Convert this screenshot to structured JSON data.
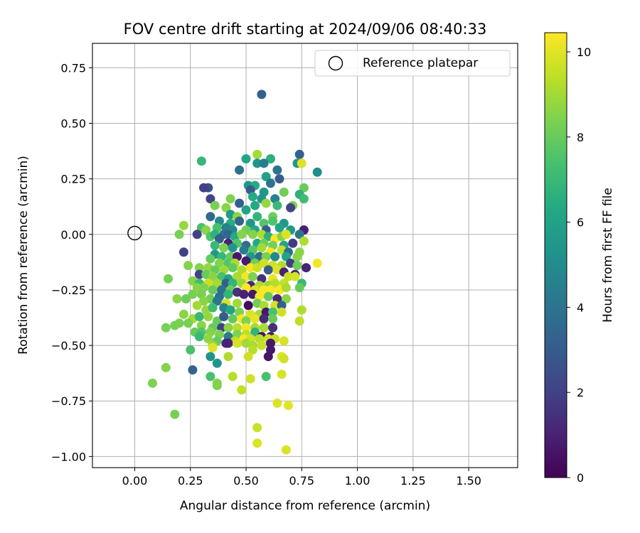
{
  "chart_data": {
    "type": "scatter",
    "title": "FOV centre drift starting at 2024/09/06 08:40:33",
    "xlabel": "Angular distance from reference (arcmin)",
    "ylabel": "Rotation from reference (arcmin)",
    "xlim": [
      -0.19,
      1.72
    ],
    "ylim": [
      -1.05,
      0.86
    ],
    "xticks": [
      0.0,
      0.25,
      0.5,
      0.75,
      1.0,
      1.25,
      1.5
    ],
    "xtick_labels": [
      "0.00",
      "0.25",
      "0.50",
      "0.75",
      "1.00",
      "1.25",
      "1.50"
    ],
    "yticks": [
      0.75,
      0.5,
      0.25,
      0.0,
      -0.25,
      -0.5,
      -0.75,
      -1.0
    ],
    "ytick_labels": [
      "0.75",
      "0.50",
      "0.25",
      "0.00",
      "−0.25",
      "−0.50",
      "−0.75",
      "−1.00"
    ],
    "grid": true,
    "legend": {
      "placement": "top-right",
      "entries": [
        "Reference platepar"
      ]
    },
    "reference_point": {
      "name": "Reference platepar",
      "x": 0.0,
      "y": 0.0
    },
    "colorbar": {
      "label": "Hours from first FF file",
      "min": 0,
      "max": 10.45,
      "colormap": "viridis",
      "ticks": [
        0,
        2,
        4,
        6,
        8,
        10
      ],
      "tick_labels": [
        "0",
        "2",
        "4",
        "6",
        "8",
        "10"
      ]
    },
    "points": [
      [
        0.57,
        0.63,
        3.3
      ],
      [
        0.74,
        0.36,
        3.2
      ],
      [
        0.64,
        0.29,
        4.0
      ],
      [
        0.61,
        0.34,
        6.6
      ],
      [
        0.55,
        0.36,
        9.0
      ],
      [
        0.5,
        0.34,
        6.2
      ],
      [
        0.55,
        0.32,
        5.4
      ],
      [
        0.58,
        0.32,
        4.4
      ],
      [
        0.73,
        0.32,
        5.4
      ],
      [
        0.75,
        0.32,
        9.9
      ],
      [
        0.3,
        0.33,
        6.9
      ],
      [
        0.82,
        0.28,
        5.0
      ],
      [
        0.47,
        0.29,
        3.8
      ],
      [
        0.59,
        0.26,
        6.0
      ],
      [
        0.65,
        0.25,
        3.0
      ],
      [
        0.61,
        0.23,
        4.0
      ],
      [
        0.51,
        0.22,
        5.6
      ],
      [
        0.33,
        0.21,
        2.5
      ],
      [
        0.31,
        0.21,
        2.0
      ],
      [
        0.54,
        0.22,
        6.4
      ],
      [
        0.76,
        0.21,
        8.0
      ],
      [
        0.52,
        0.2,
        3.0
      ],
      [
        0.58,
        0.19,
        5.6
      ],
      [
        0.67,
        0.19,
        8.2
      ],
      [
        0.74,
        0.18,
        6.7
      ],
      [
        0.53,
        0.17,
        6.4
      ],
      [
        0.57,
        0.16,
        5.4
      ],
      [
        0.63,
        0.16,
        4.6
      ],
      [
        0.76,
        0.16,
        7.2
      ],
      [
        0.34,
        0.16,
        2.1
      ],
      [
        0.43,
        0.16,
        8.4
      ],
      [
        0.41,
        0.12,
        8.6
      ],
      [
        0.47,
        0.14,
        3.1
      ],
      [
        0.54,
        0.13,
        6.3
      ],
      [
        0.59,
        0.14,
        8.8
      ],
      [
        0.64,
        0.13,
        7.0
      ],
      [
        0.71,
        0.13,
        8.5
      ],
      [
        0.7,
        0.12,
        2.1
      ],
      [
        0.36,
        0.13,
        8.3
      ],
      [
        0.5,
        0.11,
        6.0
      ],
      [
        0.43,
        0.09,
        5.6
      ],
      [
        0.55,
        0.08,
        6.8
      ],
      [
        0.62,
        0.08,
        8.2
      ],
      [
        0.34,
        0.08,
        3.6
      ],
      [
        0.38,
        0.06,
        5.0
      ],
      [
        0.43,
        0.05,
        6.5
      ],
      [
        0.46,
        0.08,
        8.6
      ],
      [
        0.47,
        0.06,
        3.4
      ],
      [
        0.52,
        0.05,
        5.5
      ],
      [
        0.58,
        0.05,
        7.6
      ],
      [
        0.62,
        0.06,
        7.5
      ],
      [
        0.67,
        0.05,
        5.6
      ],
      [
        0.37,
        0.03,
        7.4
      ],
      [
        0.41,
        0.03,
        4.5
      ],
      [
        0.44,
        0.02,
        4.8
      ],
      [
        0.5,
        0.02,
        8.2
      ],
      [
        0.54,
        0.02,
        6.3
      ],
      [
        0.59,
        0.02,
        3.0
      ],
      [
        0.65,
        0.03,
        6.0
      ],
      [
        0.7,
        0.02,
        5.6
      ],
      [
        0.76,
        0.02,
        0.9
      ],
      [
        0.3,
        0.03,
        7.4
      ],
      [
        0.32,
        0.02,
        8.6
      ],
      [
        0.28,
        0.0,
        2.0
      ],
      [
        0.34,
        -0.01,
        7.6
      ],
      [
        0.36,
        0.0,
        6.7
      ],
      [
        0.4,
        0.0,
        4.0
      ],
      [
        0.42,
        0.0,
        3.4
      ],
      [
        0.45,
        -0.01,
        6.3
      ],
      [
        0.48,
        0.0,
        8.5
      ],
      [
        0.53,
        0.0,
        8.5
      ],
      [
        0.57,
        0.0,
        9.2
      ],
      [
        0.6,
        -0.01,
        6.6
      ],
      [
        0.63,
        -0.02,
        10.4
      ],
      [
        0.66,
        -0.01,
        8.5
      ],
      [
        0.68,
        0.0,
        9.9
      ],
      [
        0.74,
        0.0,
        4.0
      ],
      [
        0.2,
        0.0,
        8.3
      ],
      [
        0.22,
        0.04,
        8.8
      ],
      [
        0.38,
        -0.02,
        3.1
      ],
      [
        0.42,
        -0.04,
        1.0
      ],
      [
        0.46,
        -0.04,
        7.6
      ],
      [
        0.5,
        -0.05,
        3.7
      ],
      [
        0.55,
        -0.04,
        6.3
      ],
      [
        0.58,
        -0.04,
        8.1
      ],
      [
        0.62,
        -0.05,
        8.3
      ],
      [
        0.67,
        -0.05,
        6.0
      ],
      [
        0.71,
        -0.04,
        1.8
      ],
      [
        0.76,
        -0.03,
        9.2
      ],
      [
        0.36,
        -0.05,
        7.0
      ],
      [
        0.4,
        -0.06,
        8.4
      ],
      [
        0.44,
        -0.06,
        5.5
      ],
      [
        0.49,
        -0.07,
        4.3
      ],
      [
        0.53,
        -0.07,
        7.7
      ],
      [
        0.57,
        -0.06,
        9.0
      ],
      [
        0.61,
        -0.08,
        10.4
      ],
      [
        0.66,
        -0.07,
        9.5
      ],
      [
        0.69,
        -0.08,
        3.8
      ],
      [
        0.74,
        -0.08,
        8.6
      ],
      [
        0.22,
        -0.08,
        2.0
      ],
      [
        0.36,
        -0.09,
        5.5
      ],
      [
        0.39,
        -0.1,
        6.9
      ],
      [
        0.43,
        -0.1,
        8.0
      ],
      [
        0.46,
        -0.1,
        0.7
      ],
      [
        0.52,
        -0.1,
        5.6
      ],
      [
        0.56,
        -0.1,
        3.7
      ],
      [
        0.59,
        -0.1,
        8.3
      ],
      [
        0.63,
        -0.1,
        4.9
      ],
      [
        0.68,
        -0.1,
        6.1
      ],
      [
        0.73,
        -0.1,
        8.6
      ],
      [
        0.34,
        -0.11,
        8.0
      ],
      [
        0.38,
        -0.13,
        8.5
      ],
      [
        0.42,
        -0.13,
        7.6
      ],
      [
        0.45,
        -0.13,
        9.1
      ],
      [
        0.5,
        -0.12,
        0.8
      ],
      [
        0.54,
        -0.13,
        8.2
      ],
      [
        0.58,
        -0.13,
        9.7
      ],
      [
        0.62,
        -0.14,
        9.7
      ],
      [
        0.66,
        -0.14,
        9.2
      ],
      [
        0.7,
        -0.13,
        2.0
      ],
      [
        0.73,
        -0.14,
        8.1
      ],
      [
        0.77,
        -0.15,
        1.0
      ],
      [
        0.82,
        -0.13,
        10.3
      ],
      [
        0.24,
        -0.14,
        8.5
      ],
      [
        0.29,
        -0.15,
        8.5
      ],
      [
        0.33,
        -0.15,
        8.8
      ],
      [
        0.36,
        -0.16,
        8.0
      ],
      [
        0.4,
        -0.16,
        8.9
      ],
      [
        0.44,
        -0.15,
        7.9
      ],
      [
        0.48,
        -0.16,
        9.2
      ],
      [
        0.52,
        -0.15,
        10.3
      ],
      [
        0.55,
        -0.15,
        9.6
      ],
      [
        0.6,
        -0.16,
        3.0
      ],
      [
        0.64,
        -0.16,
        10.0
      ],
      [
        0.67,
        -0.17,
        1.0
      ],
      [
        0.72,
        -0.18,
        1.1
      ],
      [
        0.29,
        -0.18,
        2.1
      ],
      [
        0.32,
        -0.18,
        8.0
      ],
      [
        0.35,
        -0.19,
        8.6
      ],
      [
        0.39,
        -0.19,
        7.4
      ],
      [
        0.42,
        -0.2,
        6.1
      ],
      [
        0.46,
        -0.19,
        9.1
      ],
      [
        0.5,
        -0.19,
        10.3
      ],
      [
        0.53,
        -0.19,
        8.4
      ],
      [
        0.57,
        -0.2,
        1.5
      ],
      [
        0.62,
        -0.2,
        10.1
      ],
      [
        0.69,
        -0.19,
        9.6
      ],
      [
        0.72,
        -0.19,
        9.8
      ],
      [
        0.15,
        -0.2,
        8.3
      ],
      [
        0.26,
        -0.21,
        8.5
      ],
      [
        0.29,
        -0.22,
        7.2
      ],
      [
        0.33,
        -0.22,
        9.6
      ],
      [
        0.37,
        -0.22,
        9.0
      ],
      [
        0.41,
        -0.22,
        3.1
      ],
      [
        0.44,
        -0.22,
        6.8
      ],
      [
        0.48,
        -0.22,
        8.8
      ],
      [
        0.52,
        -0.23,
        1.1
      ],
      [
        0.56,
        -0.23,
        9.2
      ],
      [
        0.6,
        -0.23,
        8.8
      ],
      [
        0.63,
        -0.22,
        9.3
      ],
      [
        0.67,
        -0.22,
        9.5
      ],
      [
        0.75,
        -0.22,
        7.0
      ],
      [
        0.28,
        -0.24,
        8.6
      ],
      [
        0.31,
        -0.24,
        8.4
      ],
      [
        0.35,
        -0.25,
        8.0
      ],
      [
        0.39,
        -0.25,
        4.0
      ],
      [
        0.43,
        -0.25,
        8.0
      ],
      [
        0.46,
        -0.26,
        1.5
      ],
      [
        0.5,
        -0.24,
        10.4
      ],
      [
        0.54,
        -0.25,
        9.9
      ],
      [
        0.58,
        -0.25,
        10.4
      ],
      [
        0.61,
        -0.25,
        10.4
      ],
      [
        0.65,
        -0.25,
        10.4
      ],
      [
        0.68,
        -0.24,
        9.1
      ],
      [
        0.74,
        -0.24,
        8.0
      ],
      [
        0.26,
        -0.27,
        8.3
      ],
      [
        0.3,
        -0.27,
        8.3
      ],
      [
        0.34,
        -0.29,
        8.2
      ],
      [
        0.38,
        -0.28,
        3.9
      ],
      [
        0.42,
        -0.27,
        6.8
      ],
      [
        0.49,
        -0.27,
        1.0
      ],
      [
        0.53,
        -0.27,
        0.7
      ],
      [
        0.56,
        -0.28,
        10.4
      ],
      [
        0.6,
        -0.28,
        8.0
      ],
      [
        0.64,
        -0.29,
        1.2
      ],
      [
        0.68,
        -0.29,
        8.6
      ],
      [
        0.19,
        -0.29,
        8.6
      ],
      [
        0.23,
        -0.29,
        8.1
      ],
      [
        0.31,
        -0.3,
        8.6
      ],
      [
        0.37,
        -0.3,
        4.2
      ],
      [
        0.41,
        -0.31,
        9.8
      ],
      [
        0.46,
        -0.31,
        9.0
      ],
      [
        0.51,
        -0.32,
        0.3
      ],
      [
        0.55,
        -0.31,
        8.2
      ],
      [
        0.58,
        -0.32,
        9.1
      ],
      [
        0.63,
        -0.32,
        9.8
      ],
      [
        0.66,
        -0.32,
        3.2
      ],
      [
        0.28,
        -0.32,
        9.0
      ],
      [
        0.32,
        -0.34,
        8.8
      ],
      [
        0.35,
        -0.33,
        7.2
      ],
      [
        0.4,
        -0.33,
        4.7
      ],
      [
        0.43,
        -0.34,
        6.1
      ],
      [
        0.47,
        -0.35,
        8.4
      ],
      [
        0.52,
        -0.36,
        9.9
      ],
      [
        0.56,
        -0.36,
        9.1
      ],
      [
        0.59,
        -0.35,
        0.7
      ],
      [
        0.62,
        -0.35,
        7.4
      ],
      [
        0.66,
        -0.35,
        9.7
      ],
      [
        0.75,
        -0.34,
        9.2
      ],
      [
        0.22,
        -0.36,
        8.6
      ],
      [
        0.26,
        -0.38,
        9.0
      ],
      [
        0.29,
        -0.37,
        7.0
      ],
      [
        0.33,
        -0.37,
        8.8
      ],
      [
        0.37,
        -0.39,
        8.0
      ],
      [
        0.4,
        -0.37,
        3.0
      ],
      [
        0.44,
        -0.38,
        7.9
      ],
      [
        0.48,
        -0.38,
        10.3
      ],
      [
        0.5,
        -0.39,
        8.4
      ],
      [
        0.54,
        -0.38,
        10.1
      ],
      [
        0.58,
        -0.38,
        1.2
      ],
      [
        0.62,
        -0.38,
        8.0
      ],
      [
        0.2,
        -0.4,
        8.3
      ],
      [
        0.24,
        -0.4,
        8.3
      ],
      [
        0.3,
        -0.41,
        8.6
      ],
      [
        0.35,
        -0.42,
        8.0
      ],
      [
        0.39,
        -0.42,
        2.0
      ],
      [
        0.42,
        -0.42,
        8.6
      ],
      [
        0.46,
        -0.42,
        9.3
      ],
      [
        0.5,
        -0.42,
        10.3
      ],
      [
        0.54,
        -0.42,
        9.1
      ],
      [
        0.58,
        -0.42,
        9.1
      ],
      [
        0.62,
        -0.42,
        1.4
      ],
      [
        0.74,
        -0.39,
        9.4
      ],
      [
        0.14,
        -0.42,
        8.3
      ],
      [
        0.18,
        -0.41,
        8.3
      ],
      [
        0.27,
        -0.44,
        8.0
      ],
      [
        0.3,
        -0.44,
        7.6
      ],
      [
        0.34,
        -0.44,
        8.5
      ],
      [
        0.38,
        -0.45,
        8.4
      ],
      [
        0.42,
        -0.46,
        4.4
      ],
      [
        0.46,
        -0.45,
        8.4
      ],
      [
        0.5,
        -0.45,
        9.4
      ],
      [
        0.54,
        -0.44,
        6.8
      ],
      [
        0.57,
        -0.46,
        0.5
      ],
      [
        0.61,
        -0.46,
        0.9
      ],
      [
        0.29,
        -0.46,
        7.0
      ],
      [
        0.33,
        -0.47,
        8.7
      ],
      [
        0.37,
        -0.48,
        8.0
      ],
      [
        0.41,
        -0.49,
        1.0
      ],
      [
        0.45,
        -0.48,
        9.4
      ],
      [
        0.49,
        -0.47,
        10.4
      ],
      [
        0.52,
        -0.47,
        9.7
      ],
      [
        0.56,
        -0.47,
        9.3
      ],
      [
        0.6,
        -0.47,
        9.7
      ],
      [
        0.63,
        -0.47,
        9.6
      ],
      [
        0.67,
        -0.48,
        9.8
      ],
      [
        0.35,
        -0.5,
        8.8
      ],
      [
        0.42,
        -0.49,
        1.0
      ],
      [
        0.46,
        -0.49,
        9.8
      ],
      [
        0.5,
        -0.49,
        9.0
      ],
      [
        0.53,
        -0.5,
        9.1
      ],
      [
        0.57,
        -0.5,
        9.5
      ],
      [
        0.61,
        -0.49,
        0.7
      ],
      [
        0.35,
        -0.51,
        10.0
      ],
      [
        0.53,
        -0.52,
        9.3
      ],
      [
        0.61,
        -0.52,
        0.7
      ],
      [
        0.25,
        -0.52,
        7.4
      ],
      [
        0.42,
        -0.55,
        9.2
      ],
      [
        0.51,
        -0.55,
        9.7
      ],
      [
        0.6,
        -0.55,
        0.6
      ],
      [
        0.66,
        -0.55,
        10.0
      ],
      [
        0.67,
        -0.56,
        9.7
      ],
      [
        0.34,
        -0.55,
        5.3
      ],
      [
        0.37,
        -0.58,
        5.4
      ],
      [
        0.14,
        -0.6,
        8.5
      ],
      [
        0.26,
        -0.61,
        3.4
      ],
      [
        0.44,
        -0.64,
        9.3
      ],
      [
        0.52,
        -0.65,
        9.7
      ],
      [
        0.66,
        -0.63,
        9.8
      ],
      [
        0.59,
        -0.64,
        7.4
      ],
      [
        0.34,
        -0.64,
        7.4
      ],
      [
        0.37,
        -0.68,
        8.3
      ],
      [
        0.37,
        -0.67,
        8.5
      ],
      [
        0.48,
        -0.7,
        9.5
      ],
      [
        0.08,
        -0.67,
        8.4
      ],
      [
        0.64,
        -0.76,
        9.9
      ],
      [
        0.69,
        -0.77,
        10.0
      ],
      [
        0.18,
        -0.81,
        8.3
      ],
      [
        0.55,
        -0.87,
        9.6
      ],
      [
        0.55,
        -0.94,
        9.9
      ],
      [
        0.68,
        -0.97,
        9.9
      ]
    ]
  }
}
